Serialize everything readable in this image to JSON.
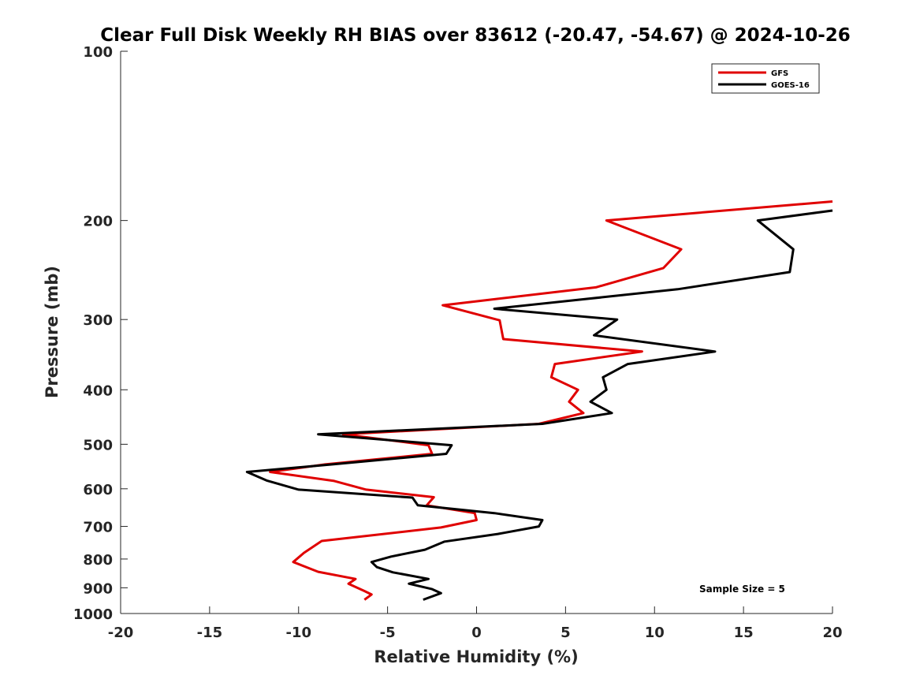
{
  "chart_data": {
    "type": "line",
    "title": "Clear Full Disk Weekly RH BIAS over 83612 (-20.47, -54.67) @ 2024-10-26",
    "xlabel": "Relative Humidity (%)",
    "ylabel": "Pressure (mb)",
    "xlim": [
      -20,
      20
    ],
    "ylim": [
      100,
      1000
    ],
    "yscale": "log",
    "yreversed": true,
    "xticks": [
      -20,
      -15,
      -10,
      -5,
      0,
      5,
      10,
      15,
      20
    ],
    "yticks": [
      100,
      200,
      300,
      400,
      500,
      600,
      700,
      800,
      900,
      1000
    ],
    "legend_position": "top-right",
    "grid": false,
    "annotation": "Sample Size = 5",
    "series": [
      {
        "name": "GFS",
        "color": "#e00000",
        "points": [
          [
            20,
            185
          ],
          [
            7.3,
            200
          ],
          [
            11.5,
            225
          ],
          [
            10.5,
            243
          ],
          [
            6.7,
            263
          ],
          [
            -1.9,
            283
          ],
          [
            1.3,
            301
          ],
          [
            1.5,
            325
          ],
          [
            9.3,
            342
          ],
          [
            4.4,
            360
          ],
          [
            4.2,
            380
          ],
          [
            5.7,
            400
          ],
          [
            5.2,
            420
          ],
          [
            6.0,
            440
          ],
          [
            3.5,
            460
          ],
          [
            -7.5,
            480
          ],
          [
            -2.7,
            502
          ],
          [
            -2.5,
            520
          ],
          [
            -8.5,
            543
          ],
          [
            -11.6,
            560
          ],
          [
            -8.0,
            581
          ],
          [
            -6.2,
            602
          ],
          [
            -2.4,
            621
          ],
          [
            -2.8,
            642
          ],
          [
            -0.1,
            663
          ],
          [
            0,
            682
          ],
          [
            -2.0,
            703
          ],
          [
            -8.7,
            743
          ],
          [
            -9.7,
            780
          ],
          [
            -10.3,
            810
          ],
          [
            -8.9,
            843
          ],
          [
            -6.8,
            868
          ],
          [
            -7.2,
            885
          ],
          [
            -6.3,
            912
          ],
          [
            -5.9,
            925
          ],
          [
            -6.3,
            945
          ]
        ]
      },
      {
        "name": "GOES-16",
        "color": "#000000",
        "points": [
          [
            20,
            192
          ],
          [
            15.8,
            200
          ],
          [
            17.8,
            225
          ],
          [
            17.6,
            247
          ],
          [
            11.3,
            265
          ],
          [
            1.0,
            287
          ],
          [
            7.9,
            300
          ],
          [
            6.6,
            320
          ],
          [
            13.4,
            342
          ],
          [
            8.5,
            360
          ],
          [
            7.1,
            380
          ],
          [
            7.3,
            400
          ],
          [
            6.4,
            420
          ],
          [
            7.6,
            440
          ],
          [
            3.7,
            460
          ],
          [
            -8.9,
            480
          ],
          [
            -1.4,
            502
          ],
          [
            -1.7,
            520
          ],
          [
            -8.1,
            543
          ],
          [
            -12.9,
            560
          ],
          [
            -11.8,
            580
          ],
          [
            -10.0,
            602
          ],
          [
            -3.6,
            622
          ],
          [
            -3.3,
            642
          ],
          [
            1.0,
            663
          ],
          [
            3.7,
            682
          ],
          [
            3.5,
            700
          ],
          [
            1.2,
            722
          ],
          [
            -1.8,
            745
          ],
          [
            -2.9,
            770
          ],
          [
            -4.8,
            792
          ],
          [
            -5.9,
            810
          ],
          [
            -5.6,
            827
          ],
          [
            -4.7,
            845
          ],
          [
            -2.7,
            868
          ],
          [
            -3.8,
            885
          ],
          [
            -2.5,
            905
          ],
          [
            -2.0,
            920
          ],
          [
            -3.0,
            945
          ]
        ]
      }
    ]
  }
}
